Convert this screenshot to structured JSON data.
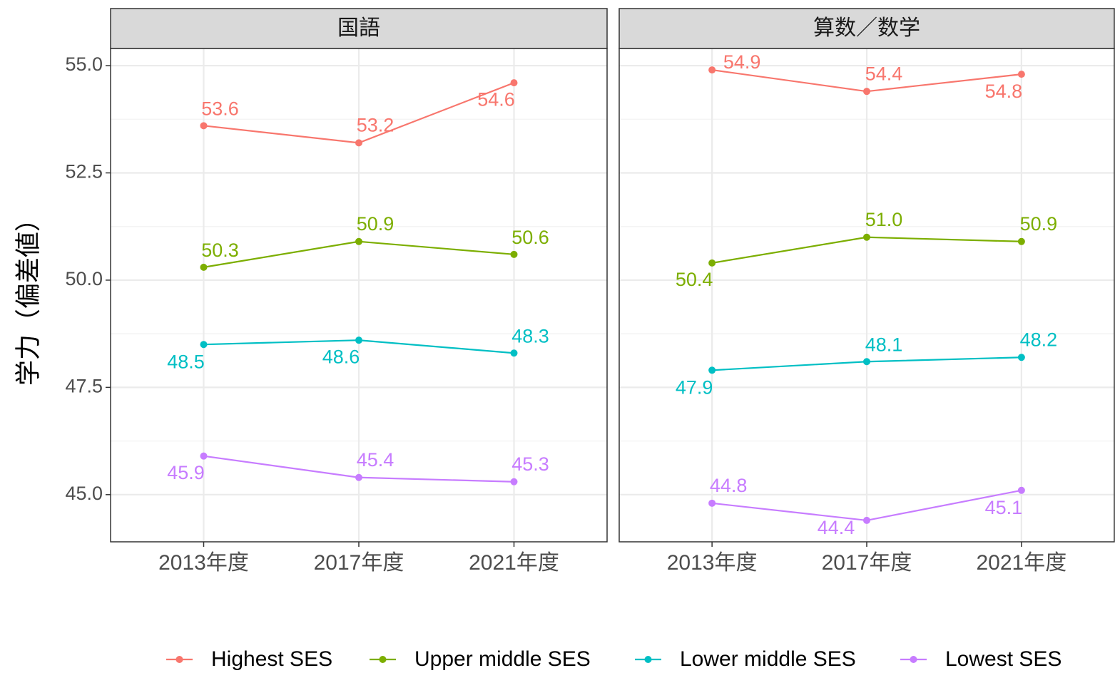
{
  "chart_data": [
    {
      "type": "line",
      "title": "国語",
      "ylabel": "学力（偏差値）",
      "categories": [
        "2013年度",
        "2017年度",
        "2021年度"
      ],
      "ylim": [
        43.9,
        55.4
      ],
      "yticks": [
        {
          "value": 45,
          "label": "45.0"
        },
        {
          "value": 47.5,
          "label": "47.5"
        },
        {
          "value": 50,
          "label": "50.0"
        },
        {
          "value": 52.5,
          "label": "52.5"
        },
        {
          "value": 55,
          "label": "55.0"
        }
      ],
      "yminor": [
        46.25,
        48.75,
        51.25,
        53.75
      ],
      "grid": true,
      "legend": "bottom",
      "series": [
        {
          "name": "Highest SES",
          "color": "#F8766D",
          "values": [
            53.6,
            53.2,
            54.6
          ]
        },
        {
          "name": "Upper middle SES",
          "color": "#7CAE00",
          "values": [
            50.3,
            50.9,
            50.6
          ]
        },
        {
          "name": "Lower middle SES",
          "color": "#00BFC4",
          "values": [
            48.5,
            48.6,
            48.3
          ]
        },
        {
          "name": "Lowest SES",
          "color": "#C77CFF",
          "values": [
            45.9,
            45.4,
            45.3
          ]
        }
      ]
    },
    {
      "type": "line",
      "title": "算数／数学",
      "categories": [
        "2013年度",
        "2017年度",
        "2021年度"
      ],
      "ylim": [
        43.9,
        55.4
      ],
      "yticks": [
        {
          "value": 45,
          "label": "45.0"
        },
        {
          "value": 47.5,
          "label": "47.5"
        },
        {
          "value": 50,
          "label": "50.0"
        },
        {
          "value": 52.5,
          "label": "52.5"
        },
        {
          "value": 55,
          "label": "55.0"
        }
      ],
      "yminor": [
        46.25,
        48.75,
        51.25,
        53.75
      ],
      "grid": true,
      "series": [
        {
          "name": "Highest SES",
          "color": "#F8766D",
          "values": [
            54.9,
            54.4,
            54.8
          ]
        },
        {
          "name": "Upper middle SES",
          "color": "#7CAE00",
          "values": [
            50.4,
            51.0,
            50.9
          ],
          "value_labels": [
            "50.4",
            "51.0",
            "50.9"
          ]
        },
        {
          "name": "Lower middle SES",
          "color": "#00BFC4",
          "values": [
            47.9,
            48.1,
            48.2
          ]
        },
        {
          "name": "Lowest SES",
          "color": "#C77CFF",
          "values": [
            44.8,
            44.4,
            45.1
          ]
        }
      ]
    }
  ]
}
